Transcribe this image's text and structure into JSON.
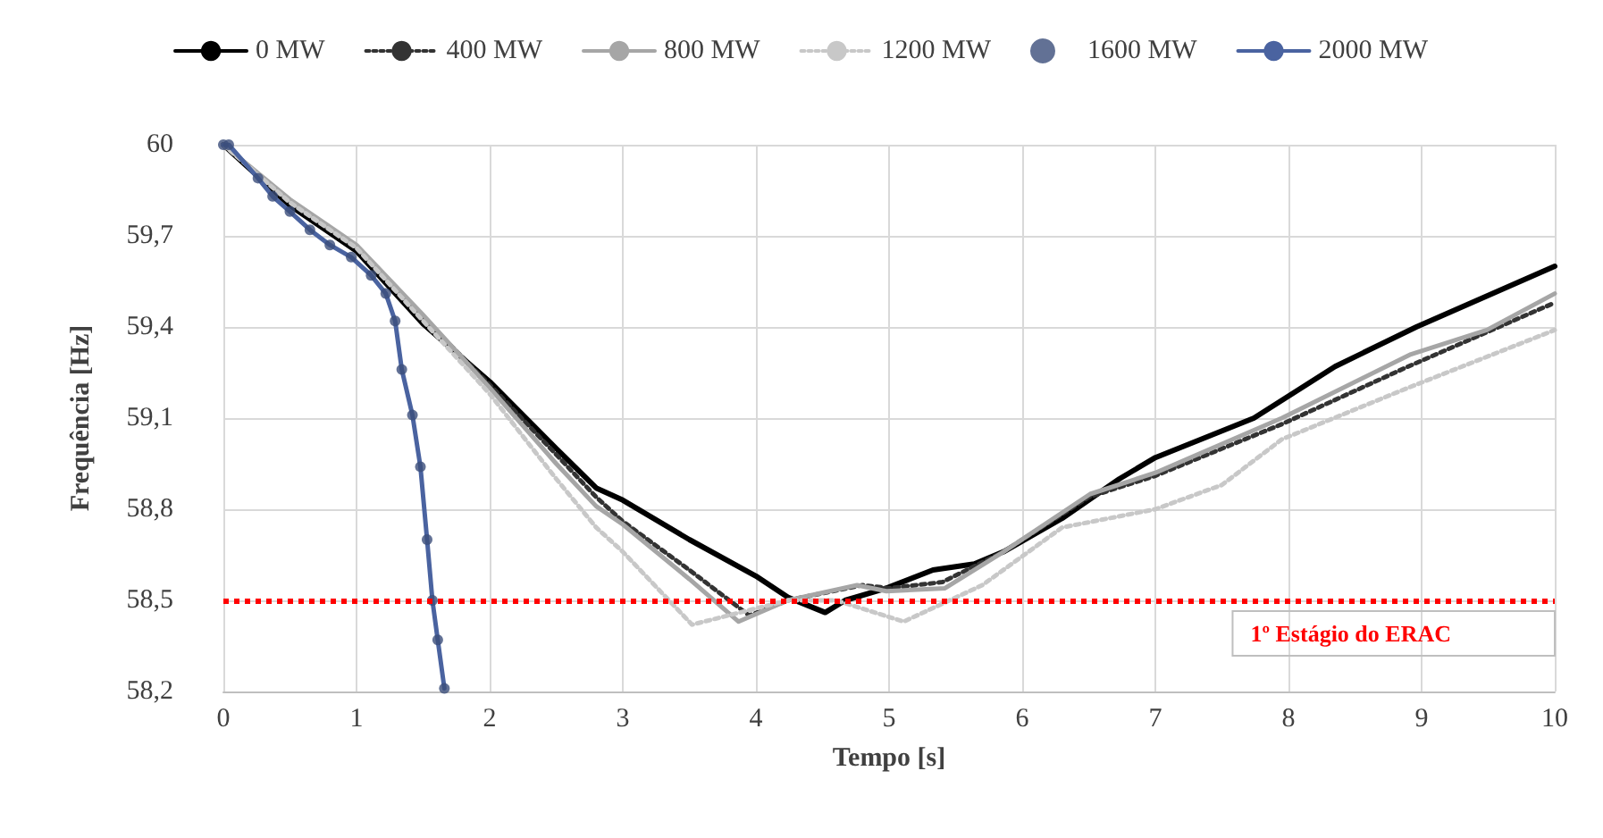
{
  "chart_data": {
    "type": "line",
    "xlabel": "Tempo [s]",
    "ylabel": "Frequência [Hz]",
    "xlim": [
      0,
      10
    ],
    "xticks": [
      0,
      1,
      2,
      3,
      4,
      5,
      6,
      7,
      8,
      9,
      10
    ],
    "ylim": [
      58.2,
      60
    ],
    "yticks": [
      {
        "value": 58.2,
        "label": "58,2"
      },
      {
        "value": 58.5,
        "label": "58,5"
      },
      {
        "value": 58.8,
        "label": "58,8"
      },
      {
        "value": 59.1,
        "label": "59,1"
      },
      {
        "value": 59.4,
        "label": "59,4"
      },
      {
        "value": 59.7,
        "label": "59,7"
      },
      {
        "value": 60,
        "label": "60"
      }
    ],
    "grid": true,
    "legend": "top",
    "ref_lines": [
      {
        "axis": "y",
        "value": 58.5,
        "label": "1º Estágio do ERAC",
        "color": "#ff0000",
        "line_style": "dotted"
      }
    ],
    "series": [
      {
        "name": "0 MW",
        "color": "#000000",
        "line_style": "solid",
        "x": [
          0,
          0.5,
          1,
          1.5,
          2,
          2.5,
          2.8,
          3,
          3.5,
          4,
          4.24,
          4.52,
          4.67,
          4.98,
          5.33,
          5.64,
          5.86,
          6.3,
          6.73,
          7,
          7.74,
          8.35,
          8.96,
          10
        ],
        "values": [
          60,
          59.8,
          59.65,
          59.41,
          59.22,
          59.0,
          58.87,
          58.83,
          58.7,
          58.58,
          58.51,
          58.46,
          58.5,
          58.54,
          58.6,
          58.62,
          58.66,
          58.77,
          58.9,
          58.97,
          59.1,
          59.27,
          59.4,
          59.6
        ]
      },
      {
        "name": "400 MW",
        "color": "#333333",
        "line_style": "dotted",
        "x": [
          0,
          0.5,
          1,
          1.5,
          2,
          2.5,
          2.8,
          3,
          3.5,
          3.95,
          4.24,
          4.8,
          5,
          5.4,
          5.86,
          6.5,
          7,
          7.95,
          8.9,
          10
        ],
        "values": [
          60,
          59.81,
          59.66,
          59.43,
          59.21,
          58.98,
          58.84,
          58.76,
          58.6,
          58.45,
          58.5,
          58.55,
          58.54,
          58.56,
          58.66,
          58.84,
          58.91,
          59.08,
          59.27,
          59.48
        ]
      },
      {
        "name": "800 MW",
        "color": "#a6a6a6",
        "line_style": "solid",
        "x": [
          0,
          0.5,
          1,
          1.5,
          2,
          2.5,
          2.8,
          3,
          3.5,
          3.87,
          4.24,
          4.76,
          4.98,
          5.42,
          5.86,
          6.51,
          7,
          7.95,
          8.92,
          9.49,
          10
        ],
        "values": [
          60,
          59.82,
          59.67,
          59.44,
          59.2,
          58.95,
          58.81,
          58.75,
          58.57,
          58.43,
          58.5,
          58.55,
          58.53,
          58.54,
          58.66,
          58.85,
          58.92,
          59.1,
          59.31,
          59.39,
          59.51
        ]
      },
      {
        "name": "1200 MW",
        "color": "#c8c8c8",
        "line_style": "dotted",
        "x": [
          0,
          0.5,
          1,
          1.5,
          2,
          2.5,
          2.8,
          3,
          3.52,
          4.24,
          4.6,
          5.11,
          5.7,
          6.3,
          7,
          7.5,
          7.95,
          8.9,
          10
        ],
        "values": [
          60,
          59.81,
          59.66,
          59.42,
          59.18,
          58.9,
          58.74,
          58.66,
          58.42,
          58.5,
          58.5,
          58.43,
          58.55,
          58.74,
          58.8,
          58.88,
          59.03,
          59.2,
          59.39
        ]
      },
      {
        "name": "1600 MW",
        "type": "scatter",
        "color": "#3b4e7a",
        "marker": "circle",
        "x": [
          0,
          0.04,
          0.26,
          0.37,
          0.5,
          0.65,
          0.8,
          0.96,
          1.11,
          1.22,
          1.29,
          1.34,
          1.42,
          1.48,
          1.53,
          1.57,
          1.61,
          1.66
        ],
        "values": [
          60,
          60,
          59.89,
          59.83,
          59.78,
          59.72,
          59.67,
          59.63,
          59.57,
          59.51,
          59.42,
          59.26,
          59.11,
          58.94,
          58.7,
          58.5,
          58.37,
          58.21
        ]
      },
      {
        "name": "2000 MW",
        "color": "#4a63a0",
        "line_style": "solid",
        "x": [
          0,
          0.04,
          0.26,
          0.37,
          0.5,
          0.65,
          0.8,
          0.96,
          1.11,
          1.22,
          1.29,
          1.34,
          1.42,
          1.48,
          1.53,
          1.57,
          1.61,
          1.66
        ],
        "values": [
          60,
          60,
          59.89,
          59.83,
          59.78,
          59.72,
          59.67,
          59.63,
          59.57,
          59.51,
          59.42,
          59.26,
          59.11,
          58.94,
          58.7,
          58.5,
          58.37,
          58.21
        ]
      }
    ]
  }
}
